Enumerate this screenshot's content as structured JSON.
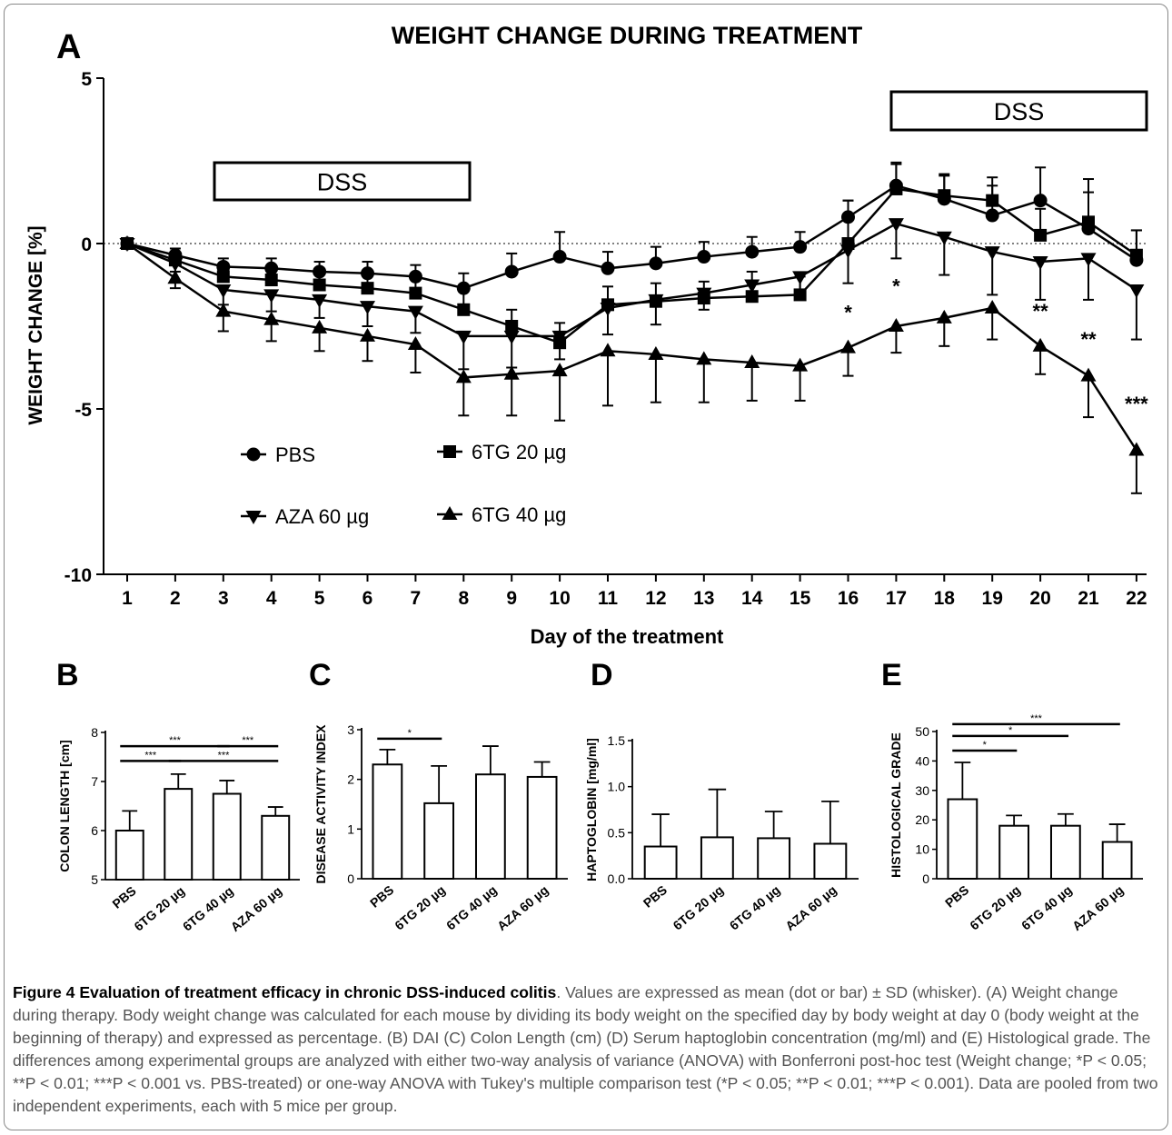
{
  "figure": {
    "caption_title": "Figure 4 Evaluation of treatment efficacy in chronic DSS-induced colitis",
    "caption_text": ". Values are expressed as mean (dot or bar) ± SD (whisker). (A) Weight change during therapy. Body weight change was calculated for each mouse by dividing its body weight on the specified day by body weight at day 0 (body weight at the beginning of therapy) and expressed as percentage. (B) DAI (C) Colon Length (cm) (D) Serum haptoglobin concentration (mg/ml) and (E) Histological grade. The differences among experimental groups are analyzed with either two-way analysis of variance (ANOVA) with Bonferroni post-hoc test (Weight change; *P < 0.05; **P < 0.01; ***P < 0.001 vs. PBS-treated) or one-way ANOVA with Tukey's multiple comparison test (*P < 0.05; **P < 0.01; ***P < 0.001). Data are pooled from two independent experiments, each with 5 mice per group."
  },
  "chart_data": [
    {
      "panel": "A",
      "type": "line",
      "title": "WEIGHT CHANGE DURING TREATMENT",
      "xlabel": "Day of the treatment",
      "ylabel": "WEIGHT CHANGE [%]",
      "ylim": [
        -10,
        5
      ],
      "yticks": [
        "5",
        "0",
        "-5",
        "-10"
      ],
      "x": [
        1,
        2,
        3,
        4,
        5,
        6,
        7,
        8,
        9,
        10,
        11,
        12,
        13,
        14,
        15,
        16,
        17,
        18,
        19,
        20,
        21,
        22
      ],
      "dss_boxes": [
        {
          "label": "DSS",
          "from_day": 3,
          "to_day": 8.5
        },
        {
          "label": "DSS",
          "from_day": 17,
          "to_day": 22.3
        }
      ],
      "series": [
        {
          "name": "PBS",
          "marker": "circle",
          "values": [
            0,
            -0.35,
            -0.7,
            -0.75,
            -0.85,
            -0.9,
            -1.0,
            -1.35,
            -0.85,
            -0.4,
            -0.75,
            -0.6,
            -0.4,
            -0.25,
            -0.1,
            0.8,
            1.75,
            1.35,
            0.85,
            1.3,
            0.45,
            -0.5
          ],
          "errors": [
            0,
            0.2,
            0.25,
            0.3,
            0.3,
            0.35,
            0.35,
            0.45,
            0.55,
            0.75,
            0.5,
            0.5,
            0.45,
            0.45,
            0.45,
            0.5,
            0.7,
            0.75,
            0.9,
            1.0,
            1.5,
            0.9
          ]
        },
        {
          "name": "6TG 20 µg",
          "marker": "square",
          "values": [
            0,
            -0.5,
            -1.0,
            -1.1,
            -1.25,
            -1.35,
            -1.5,
            -2.0,
            -2.5,
            -3.0,
            -1.85,
            -1.75,
            -1.65,
            -1.6,
            -1.55,
            0.0,
            1.65,
            1.45,
            1.3,
            0.25,
            0.65,
            -0.35
          ],
          "errors": [
            0,
            0.2,
            0.3,
            0.35,
            0.4,
            0.4,
            0.45,
            0.6,
            0.5,
            0.6,
            0.55,
            0.55,
            0.5,
            0.75,
            0.55,
            1.3,
            0.75,
            0.6,
            0.7,
            0.8,
            0.9,
            0.75
          ]
        },
        {
          "name": "AZA 60 µg",
          "marker": "triangle-down",
          "values": [
            0,
            -0.6,
            -1.4,
            -1.55,
            -1.7,
            -1.9,
            -2.05,
            -2.8,
            -2.8,
            -2.8,
            -1.95,
            -1.7,
            -1.5,
            -1.25,
            -1.0,
            -0.2,
            0.6,
            0.2,
            -0.25,
            -0.55,
            -0.45,
            -1.4
          ],
          "errors": [
            0,
            0.25,
            0.45,
            0.5,
            0.55,
            0.6,
            0.65,
            1.0,
            0.95,
            0.7,
            0.8,
            0.75,
            0.5,
            0.45,
            0.55,
            1.0,
            1.05,
            1.15,
            1.3,
            1.15,
            1.25,
            1.5
          ]
        },
        {
          "name": "6TG 40 µg",
          "marker": "triangle-up",
          "values": [
            0,
            -1.05,
            -2.05,
            -2.3,
            -2.55,
            -2.8,
            -3.05,
            -4.05,
            -3.95,
            -3.85,
            -3.25,
            -3.35,
            -3.5,
            -3.6,
            -3.7,
            -3.15,
            -2.5,
            -2.25,
            -1.95,
            -3.1,
            -4.0,
            -6.25
          ],
          "errors": [
            0,
            0.3,
            0.6,
            0.65,
            0.7,
            0.75,
            0.85,
            1.15,
            1.25,
            1.5,
            1.65,
            1.45,
            1.3,
            1.15,
            1.05,
            0.85,
            0.8,
            0.85,
            0.95,
            0.85,
            1.25,
            1.3
          ]
        }
      ],
      "annotations": [
        {
          "day": 16,
          "y": -2.3,
          "text": "*"
        },
        {
          "day": 17,
          "y": -1.5,
          "text": "*"
        },
        {
          "day": 20,
          "y": -2.25,
          "text": "**"
        },
        {
          "day": 21,
          "y": -3.1,
          "text": "**"
        },
        {
          "day": 22,
          "y": -5.05,
          "text": "***"
        }
      ]
    },
    {
      "panel": "B",
      "type": "bar",
      "ylabel": "COLON LENGTH [cm]",
      "ylim": [
        5,
        8
      ],
      "yticks": [
        "5",
        "6",
        "7",
        "8"
      ],
      "categories": [
        "PBS",
        "6TG 20 µg",
        "6TG 40 µg",
        "AZA 60 µg"
      ],
      "values": [
        6.0,
        6.85,
        6.75,
        6.3
      ],
      "errors": [
        0.4,
        0.3,
        0.27,
        0.18
      ],
      "significance": [
        {
          "from": 0,
          "to": 2,
          "y": 7.72,
          "text": "***"
        },
        {
          "from": 2,
          "to": 3,
          "y": 7.72,
          "text": "***"
        },
        {
          "from": 0,
          "to": 1,
          "y": 7.42,
          "text": "***"
        },
        {
          "from": 1,
          "to": 3,
          "y": 7.42,
          "text": "***"
        }
      ]
    },
    {
      "panel": "C",
      "type": "bar",
      "ylabel": "DISEASE ACTIVITY INDEX",
      "ylim": [
        0,
        3
      ],
      "yticks": [
        "0",
        "1",
        "2",
        "3"
      ],
      "categories": [
        "PBS",
        "6TG 20 µg",
        "6TG 40 µg",
        "AZA 60 µg"
      ],
      "values": [
        2.3,
        1.52,
        2.1,
        2.05
      ],
      "errors": [
        0.3,
        0.75,
        0.57,
        0.3
      ],
      "significance": [
        {
          "from": 0,
          "to": 1,
          "y": 2.82,
          "text": "*"
        }
      ]
    },
    {
      "panel": "D",
      "type": "bar",
      "ylabel": "HAPTOGLOBIN [mg/ml]",
      "ylim": [
        0,
        1.5
      ],
      "yticks": [
        "0.0",
        "0.5",
        "1.0",
        "1.5"
      ],
      "categories": [
        "PBS",
        "6TG 20 µg",
        "6TG 40 µg",
        "AZA 60 µg"
      ],
      "values": [
        0.35,
        0.45,
        0.44,
        0.38
      ],
      "errors": [
        0.35,
        0.52,
        0.29,
        0.46
      ],
      "significance": []
    },
    {
      "panel": "E",
      "type": "bar",
      "ylabel": "HISTOLOGICAL GRADE",
      "ylim": [
        0,
        50
      ],
      "yticks": [
        "0",
        "10",
        "20",
        "30",
        "40",
        "50"
      ],
      "categories": [
        "PBS",
        "6TG 20 µg",
        "6TG 40 µg",
        "AZA 60 µg"
      ],
      "values": [
        27,
        18,
        18,
        12.5
      ],
      "errors": [
        12.5,
        3.5,
        4,
        6
      ],
      "significance": [
        {
          "from": 0,
          "to": 3,
          "y": 52.5,
          "text": "***"
        },
        {
          "from": 0,
          "to": 2,
          "y": 48.5,
          "text": "*"
        },
        {
          "from": 0,
          "to": 1,
          "y": 43.5,
          "text": "*"
        }
      ]
    }
  ]
}
